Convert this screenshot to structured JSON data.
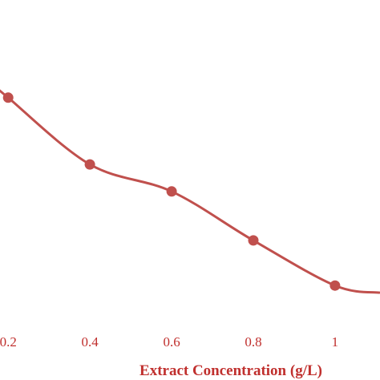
{
  "colors": {
    "series": "#c0504d",
    "text": "#c0302e"
  },
  "chart_data": {
    "type": "line",
    "xlabel": "Extract Concentration (g/L)",
    "ylabel": "",
    "x_ticks": [
      "0.2",
      "0.4",
      "0.6",
      "0.8",
      "1"
    ],
    "xlim": [
      0.18,
      1.11
    ],
    "ylim": [
      0,
      1
    ],
    "grid": false,
    "smooth": true,
    "series": [
      {
        "x": [
          0.2,
          0.4,
          0.6,
          0.8,
          1.0
        ],
        "y": [
          0.747,
          0.544,
          0.462,
          0.313,
          0.176
        ]
      }
    ]
  }
}
